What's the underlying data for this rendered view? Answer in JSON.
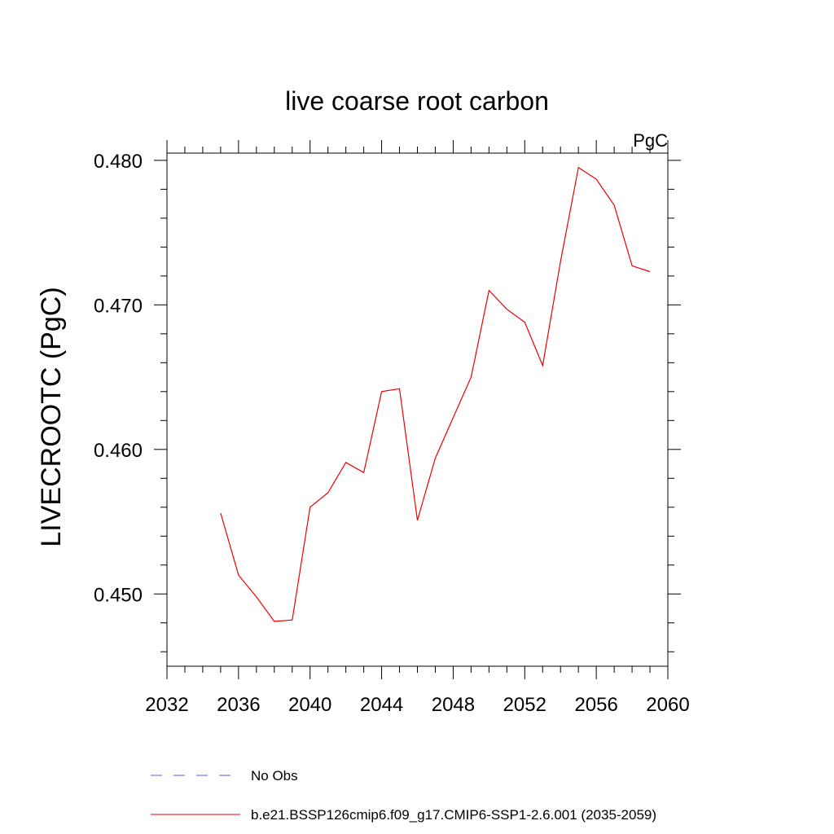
{
  "chart_data": {
    "type": "line",
    "title": "live coarse root carbon",
    "units_label": "PgC",
    "ylabel": "LIVECROOTC  (PgC)",
    "xlabel": "",
    "xlim": [
      2032,
      2060
    ],
    "ylim": [
      0.445,
      0.4805
    ],
    "x_ticks": [
      2032,
      2036,
      2040,
      2044,
      2048,
      2052,
      2056,
      2060
    ],
    "x_tick_labels": [
      "2032",
      "2036",
      "2040",
      "2044",
      "2048",
      "2052",
      "2056",
      "2060"
    ],
    "y_ticks": [
      0.45,
      0.46,
      0.47,
      0.48
    ],
    "y_tick_labels": [
      "0.450",
      "0.460",
      "0.470",
      "0.480"
    ],
    "grid": false,
    "legend_position": "bottom",
    "series": [
      {
        "name": "No Obs",
        "color": "#5555ee",
        "style": "dashed",
        "x": [],
        "y": []
      },
      {
        "name": "b.e21.BSSP126cmip6.f09_g17.CMIP6-SSP1-2.6.001 (2035-2059)",
        "color": "#ee0000",
        "style": "solid",
        "x": [
          2035,
          2036,
          2037,
          2038,
          2039,
          2040,
          2041,
          2042,
          2043,
          2044,
          2045,
          2046,
          2047,
          2048,
          2049,
          2050,
          2051,
          2052,
          2053,
          2054,
          2055,
          2056,
          2057,
          2058,
          2059
        ],
        "y": [
          0.4556,
          0.4513,
          0.4498,
          0.4481,
          0.4482,
          0.456,
          0.457,
          0.4591,
          0.4584,
          0.464,
          0.4642,
          0.4551,
          0.4594,
          0.4622,
          0.465,
          0.471,
          0.4697,
          0.4688,
          0.4658,
          0.473,
          0.4795,
          0.4787,
          0.4769,
          0.4727,
          0.4723
        ]
      }
    ]
  }
}
